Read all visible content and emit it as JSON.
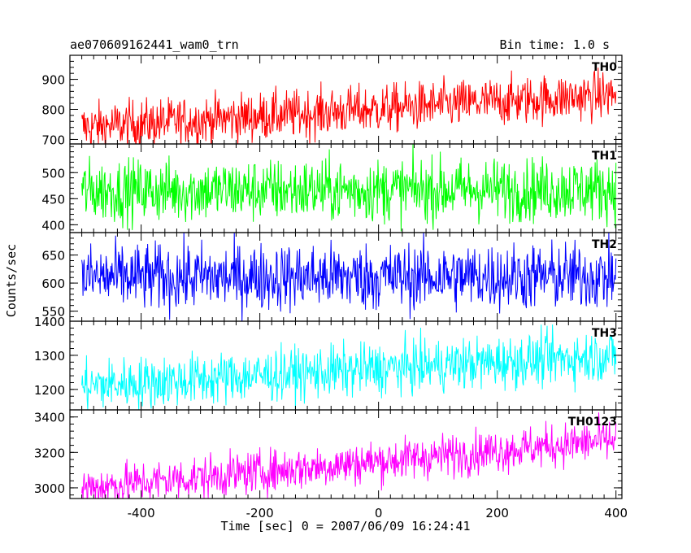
{
  "header": {
    "title": "ae070609162441_wam0_trn",
    "bin_time": "Bin time: 1.0 s"
  },
  "chart_data": {
    "type": "line",
    "xlabel": "Time [sec] 0 = 2007/06/09 16:24:41",
    "ylabel": "Counts/sec",
    "xlim": [
      -520,
      410
    ],
    "xticks": [
      "-400",
      "-200",
      "0",
      "200",
      "400"
    ],
    "xtick_values": [
      -400,
      -200,
      0,
      200,
      400
    ],
    "series": [
      {
        "name": "TH0",
        "color": "#ff0000",
        "ylim": [
          685,
          980
        ],
        "yticks": [
          "700",
          "800",
          "900"
        ],
        "ytick_values": [
          700,
          800,
          900
        ],
        "x_range": [
          -500,
          400
        ],
        "start_mean": 740,
        "end_mean": 850,
        "scatter": 40
      },
      {
        "name": "TH1",
        "color": "#00ff00",
        "ylim": [
          385,
          555
        ],
        "yticks": [
          "400",
          "450",
          "500"
        ],
        "ytick_values": [
          400,
          450,
          500
        ],
        "x_range": [
          -500,
          400
        ],
        "start_mean": 465,
        "end_mean": 468,
        "scatter": 30
      },
      {
        "name": "TH2",
        "color": "#0000ff",
        "ylim": [
          532,
          690
        ],
        "yticks": [
          "550",
          "600",
          "650"
        ],
        "ytick_values": [
          550,
          600,
          650
        ],
        "x_range": [
          -500,
          400
        ],
        "start_mean": 610,
        "end_mean": 612,
        "scatter": 30
      },
      {
        "name": "TH3",
        "color": "#00ffff",
        "ylim": [
          1140,
          1400
        ],
        "yticks": [
          "1200",
          "1300",
          "1400"
        ],
        "ytick_values": [
          1200,
          1300,
          1400
        ],
        "x_range": [
          -500,
          400
        ],
        "start_mean": 1210,
        "end_mean": 1300,
        "scatter": 38
      },
      {
        "name": "TH0123",
        "color": "#ff00ff",
        "ylim": [
          2940,
          3440
        ],
        "yticks": [
          "3000",
          "3200",
          "3400"
        ],
        "ytick_values": [
          3000,
          3200,
          3400
        ],
        "x_range": [
          -500,
          400
        ],
        "start_mean": 3000,
        "end_mean": 3270,
        "scatter": 60
      }
    ],
    "grid": false,
    "legend": "panel labels top-right"
  }
}
